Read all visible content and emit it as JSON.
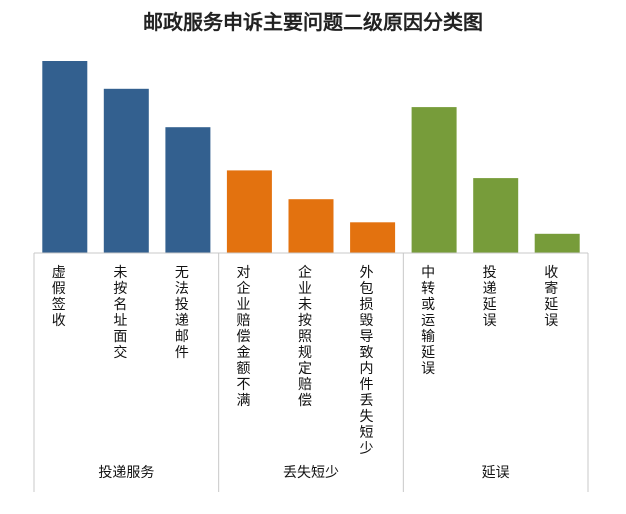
{
  "chart_data": {
    "type": "bar",
    "title": "邮政服务申诉主要问题二级原因分类图",
    "grid": false,
    "value_axis_shown": false,
    "ylim": [
      0,
      100
    ],
    "groups": [
      {
        "name": "投递服务",
        "color": "#33608F",
        "categories": [
          "虚假签收",
          "未按名址面交",
          "无法投递邮件"
        ]
      },
      {
        "name": "丢失短少",
        "color": "#E3720F",
        "categories": [
          "对企业赔偿金额不满",
          "企业未按照规定赔偿",
          "外包损毁导致内件丢失短少"
        ]
      },
      {
        "name": "延误",
        "color": "#779C3A",
        "categories": [
          "中转或运输延误",
          "投递延误",
          "收寄延误"
        ]
      }
    ],
    "categories": [
      "虚假签收",
      "未按名址面交",
      "无法投递邮件",
      "对企业赔偿金额不满",
      "企业未按照规定赔偿",
      "外包损毁导致内件丢失短少",
      "中转或运输延误",
      "投递延误",
      "收寄延误"
    ],
    "values": [
      100,
      85.5,
      65.5,
      43,
      28,
      16,
      76,
      39,
      10
    ]
  }
}
